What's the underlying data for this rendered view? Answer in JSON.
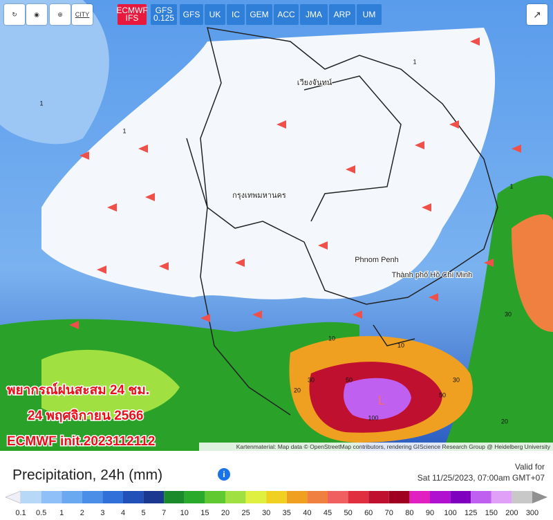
{
  "toolbar": {
    "city_button": "CITY",
    "models": [
      "ECMWF IFS",
      "GFS 0.125",
      "GFS",
      "UK",
      "IC",
      "GEM",
      "ACC",
      "JMA",
      "ARP",
      "UM"
    ]
  },
  "map": {
    "places": [
      "Phnom Penh",
      "Thành phố Hồ Chí Minh",
      "กรุงเทพมหานคร",
      "เวียงจันทน์"
    ],
    "low_marker": "L",
    "contour_labels": [
      "1",
      "1",
      "1",
      "1",
      "10",
      "10",
      "20",
      "30",
      "30",
      "30",
      "50",
      "50",
      "100",
      "20"
    ],
    "overlay": [
      "พยากรณ์ฝนสะสม  24 ชม.",
      "24 พฤศจิกายน 2566",
      "ECMWF  init.2023112112"
    ],
    "attribution": "Kartenmaterial: Map data © OpenStreetMap contributors, rendering GIScience Research Group @ Heidelberg University"
  },
  "legend": {
    "title": "Precipitation, 24h (mm)",
    "valid_label": "Valid for",
    "valid_time": "Sat 11/25/2023, 07:00am GMT+07",
    "labels": [
      0.1,
      0.5,
      1,
      2,
      3,
      4,
      5,
      7,
      10,
      15,
      20,
      25,
      30,
      35,
      40,
      45,
      50,
      60,
      70,
      80,
      90,
      100,
      125,
      150,
      200,
      300
    ],
    "colors": [
      "#eef0f8",
      "#b8d8f8",
      "#90c0f8",
      "#6aa8f0",
      "#4a8ee8",
      "#3070d8",
      "#2050b8",
      "#1a3890",
      "#1a8a2a",
      "#2aaa2a",
      "#60c830",
      "#a0e040",
      "#e0f040",
      "#f0d020",
      "#f0a020",
      "#f08040",
      "#f06060",
      "#e03040",
      "#c01030",
      "#a00020",
      "#e020c0",
      "#b010d0",
      "#8000c0",
      "#c060f0",
      "#e0a0f8",
      "#c8c8c8",
      "#909090"
    ]
  }
}
